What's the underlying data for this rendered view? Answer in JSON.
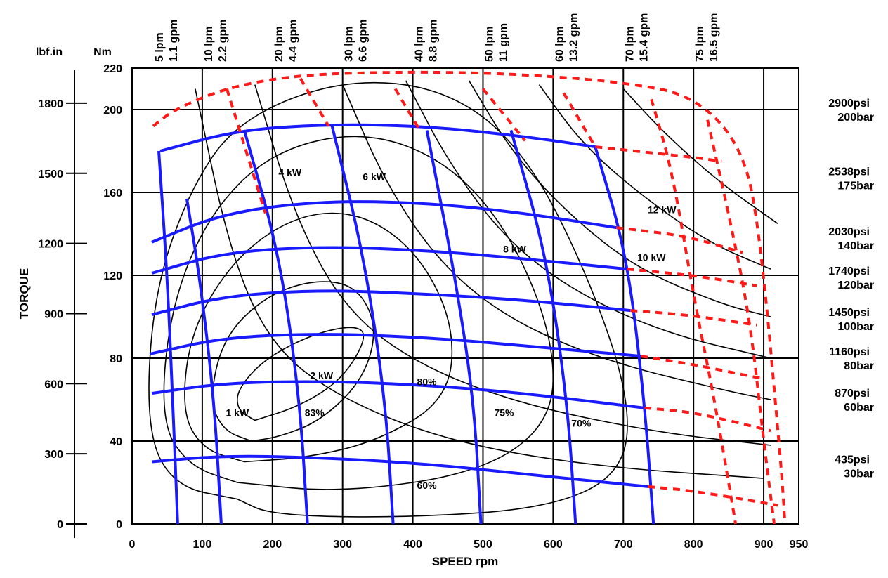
{
  "chart_data": {
    "type": "line",
    "xlabel": "SPEED rpm",
    "ylabel": "TORQUE",
    "xlim": [
      0,
      950
    ],
    "ylim_nm": [
      0,
      220
    ],
    "ylim_lbfin": [
      0,
      1950
    ],
    "unit_lbfin": "lbf.in",
    "unit_nm": "Nm",
    "x_ticks": [
      "0",
      "100",
      "200",
      "300",
      "400",
      "500",
      "600",
      "700",
      "800",
      "900",
      "950"
    ],
    "y_ticks_nm": [
      "0",
      "40",
      "80",
      "120",
      "160",
      "200",
      "220"
    ],
    "y_ticks_lbfin": [
      "0",
      "300",
      "600",
      "900",
      "1200",
      "1500",
      "1800"
    ],
    "grid": true,
    "colors": {
      "flow": "#1a1aff",
      "pressure": "#1a1aff",
      "limit": "#ff1a1a",
      "efficiency": "#000000",
      "power": "#000000"
    },
    "flow_lines": [
      {
        "lpm": "5 lpm",
        "gpm": "1.1 gpm",
        "label_x": 30,
        "points": [
          [
            65,
            0
          ],
          [
            58,
            60
          ],
          [
            50,
            120
          ],
          [
            38,
            180
          ]
        ]
      },
      {
        "lpm": "10 lpm",
        "gpm": "2.2 gpm",
        "label_x": 100,
        "points": [
          [
            127,
            0
          ],
          [
            117,
            60
          ],
          [
            96,
            120
          ],
          [
            78,
            157
          ]
        ]
      },
      {
        "lpm": "20 lpm",
        "gpm": "4.4 gpm",
        "label_x": 200,
        "points": [
          [
            250,
            0
          ],
          [
            239,
            60
          ],
          [
            210,
            130
          ],
          [
            160,
            190
          ]
        ]
      },
      {
        "lpm": "30 lpm",
        "gpm": "6.6 gpm",
        "label_x": 300,
        "points": [
          [
            372,
            0
          ],
          [
            361,
            60
          ],
          [
            330,
            130
          ],
          [
            285,
            192
          ]
        ]
      },
      {
        "lpm": "40 lpm",
        "gpm": "8.8 gpm",
        "label_x": 400,
        "points": [
          [
            497,
            0
          ],
          [
            487,
            60
          ],
          [
            460,
            120
          ],
          [
            420,
            190
          ]
        ]
      },
      {
        "lpm": "50 lpm",
        "gpm": "11 gpm",
        "label_x": 500,
        "points": [
          [
            632,
            0
          ],
          [
            620,
            60
          ],
          [
            590,
            130
          ],
          [
            540,
            190
          ]
        ]
      },
      {
        "lpm": "60 lpm",
        "gpm": "13.2 gpm",
        "label_x": 600,
        "points": [
          [
            743,
            0
          ],
          [
            730,
            60
          ],
          [
            705,
            130
          ],
          [
            660,
            182
          ]
        ]
      },
      {
        "lpm": "70 lpm",
        "gpm": "15.4 gpm",
        "label_x": 700,
        "points": []
      },
      {
        "lpm": "75 lpm",
        "gpm": "16.5 gpm",
        "label_x": 800,
        "points": []
      }
    ],
    "pressure_lines": [
      {
        "psi": "2900psi",
        "bar": "200bar",
        "y_label": 200,
        "points": []
      },
      {
        "psi": "2538psi",
        "bar": "175bar",
        "y_label": 167,
        "points": [
          [
            40,
            180
          ],
          [
            150,
            190
          ],
          [
            280,
            193
          ],
          [
            420,
            192
          ],
          [
            560,
            187
          ],
          [
            660,
            182
          ]
        ]
      },
      {
        "psi": "2030psi",
        "bar": "140bar",
        "y_label": 138,
        "points": [
          [
            28,
            136
          ],
          [
            130,
            150
          ],
          [
            270,
            156
          ],
          [
            420,
            155
          ],
          [
            560,
            150
          ],
          [
            690,
            143
          ]
        ]
      },
      {
        "psi": "1740psi",
        "bar": "120bar",
        "y_label": 119,
        "points": [
          [
            28,
            121
          ],
          [
            130,
            131
          ],
          [
            270,
            134
          ],
          [
            420,
            132
          ],
          [
            560,
            128
          ],
          [
            705,
            123
          ]
        ]
      },
      {
        "psi": "1450psi",
        "bar": "100bar",
        "y_label": 99,
        "points": [
          [
            28,
            101
          ],
          [
            130,
            110
          ],
          [
            270,
            113
          ],
          [
            420,
            111
          ],
          [
            560,
            108
          ],
          [
            710,
            103
          ]
        ]
      },
      {
        "psi": "1160psi",
        "bar": "80bar",
        "y_label": 80,
        "points": [
          [
            25,
            82
          ],
          [
            130,
            90
          ],
          [
            270,
            92
          ],
          [
            420,
            90
          ],
          [
            560,
            86
          ],
          [
            725,
            81
          ]
        ]
      },
      {
        "psi": "870psi",
        "bar": "60bar",
        "y_label": 60,
        "points": [
          [
            28,
            63
          ],
          [
            130,
            68
          ],
          [
            270,
            69
          ],
          [
            420,
            67
          ],
          [
            560,
            63
          ],
          [
            730,
            56
          ]
        ]
      },
      {
        "psi": "435psi",
        "bar": "30bar",
        "y_label": 28,
        "points": [
          [
            28,
            30
          ],
          [
            130,
            33
          ],
          [
            270,
            32
          ],
          [
            420,
            29
          ],
          [
            560,
            24
          ],
          [
            735,
            18
          ]
        ]
      }
    ],
    "limit_curve": [
      [
        30,
        192
      ],
      [
        60,
        200
      ],
      [
        130,
        210
      ],
      [
        220,
        216
      ],
      [
        330,
        218
      ],
      [
        480,
        218
      ],
      [
        600,
        216
      ],
      [
        700,
        213
      ],
      [
        800,
        207
      ],
      [
        870,
        182
      ],
      [
        895,
        140
      ],
      [
        925,
        28
      ],
      [
        930,
        2
      ]
    ],
    "limit_extensions": [
      [
        [
          660,
          182
        ],
        [
          800,
          177
        ],
        [
          840,
          175
        ]
      ],
      [
        [
          690,
          143
        ],
        [
          790,
          139
        ],
        [
          870,
          131
        ]
      ],
      [
        [
          705,
          123
        ],
        [
          800,
          120
        ],
        [
          890,
          115
        ]
      ],
      [
        [
          710,
          103
        ],
        [
          790,
          101
        ],
        [
          890,
          96
        ]
      ],
      [
        [
          725,
          81
        ],
        [
          800,
          77
        ],
        [
          900,
          70
        ]
      ],
      [
        [
          730,
          56
        ],
        [
          800,
          54
        ],
        [
          910,
          45
        ]
      ],
      [
        [
          735,
          18
        ],
        [
          800,
          16
        ],
        [
          920,
          9
        ]
      ]
    ],
    "limit_verticals": [
      [
        [
          135,
          210
        ],
        [
          190,
          150
        ]
      ],
      [
        [
          240,
          215
        ],
        [
          280,
          192
        ]
      ],
      [
        [
          375,
          210
        ],
        [
          410,
          190
        ]
      ],
      [
        [
          500,
          210
        ],
        [
          560,
          185
        ]
      ],
      [
        [
          615,
          208
        ],
        [
          660,
          182
        ]
      ],
      [
        [
          740,
          205
        ],
        [
          770,
          170
        ],
        [
          800,
          110
        ],
        [
          830,
          60
        ],
        [
          860,
          0
        ]
      ],
      [
        [
          820,
          195
        ],
        [
          850,
          150
        ],
        [
          880,
          100
        ],
        [
          900,
          40
        ],
        [
          915,
          0
        ]
      ]
    ],
    "power_lines": [
      {
        "label": "1 kW",
        "label_pos": [
          150,
          52
        ],
        "points": [
          [
            90,
            210
          ],
          [
            140,
            130
          ],
          [
            200,
            85
          ],
          [
            300,
            60
          ],
          [
            450,
            40
          ],
          [
            650,
            28
          ],
          [
            900,
            22
          ]
        ]
      },
      {
        "label": "2 kW",
        "label_pos": [
          270,
          70
        ],
        "points": [
          [
            175,
            212
          ],
          [
            230,
            150
          ],
          [
            300,
            105
          ],
          [
            400,
            78
          ],
          [
            550,
            58
          ],
          [
            750,
            44
          ],
          [
            910,
            38
          ]
        ]
      },
      {
        "label": "4 kW",
        "label_pos": [
          225,
          168
        ],
        "points": [
          [
            300,
            212
          ],
          [
            360,
            165
          ],
          [
            440,
            125
          ],
          [
            540,
            98
          ],
          [
            680,
            78
          ],
          [
            850,
            64
          ],
          [
            910,
            60
          ]
        ]
      },
      {
        "label": "6 kW",
        "label_pos": [
          345,
          166
        ],
        "points": [
          [
            390,
            214
          ],
          [
            450,
            175
          ],
          [
            530,
            138
          ],
          [
            630,
            112
          ],
          [
            760,
            92
          ],
          [
            910,
            80
          ]
        ]
      },
      {
        "label": "8 kW",
        "label_pos": [
          545,
          131
        ],
        "points": [
          [
            480,
            214
          ],
          [
            540,
            180
          ],
          [
            620,
            150
          ],
          [
            720,
            123
          ],
          [
            840,
            106
          ],
          [
            910,
            100
          ]
        ]
      },
      {
        "label": "10 kW",
        "label_pos": [
          740,
          127
        ],
        "points": [
          [
            580,
            212
          ],
          [
            640,
            184
          ],
          [
            720,
            160
          ],
          [
            820,
            136
          ],
          [
            910,
            123
          ]
        ]
      },
      {
        "label": "12 kW",
        "label_pos": [
          755,
          150
        ],
        "points": [
          [
            700,
            210
          ],
          [
            760,
            188
          ],
          [
            840,
            164
          ],
          [
            920,
            145
          ]
        ]
      }
    ],
    "efficiency_contours": [
      {
        "label": "83%",
        "label_pos": [
          260,
          52
        ]
      },
      {
        "label": "80%",
        "label_pos": [
          420,
          67
        ]
      },
      {
        "label": "75%",
        "label_pos": [
          530,
          52
        ]
      },
      {
        "label": "70%",
        "label_pos": [
          640,
          47
        ]
      },
      {
        "label": "60%",
        "label_pos": [
          420,
          17
        ]
      }
    ]
  }
}
